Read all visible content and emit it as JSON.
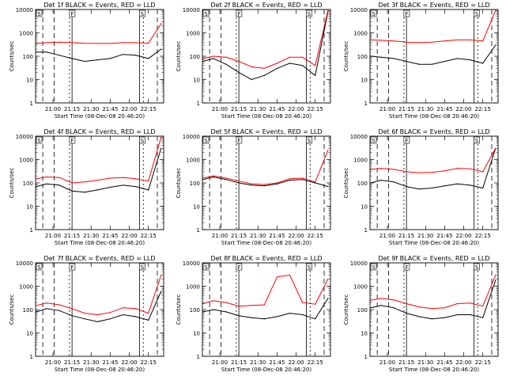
{
  "colors": {
    "events": "#000000",
    "lld": "#ff0000",
    "frame": "#000000",
    "background": "#ffffff"
  },
  "y_axis_label": "Counts/sec",
  "x_axis_label": "Start Time (08-Dec-08 20:46:20)",
  "x_tick_labels": [
    "21:00",
    "21:15",
    "21:30",
    "21:45",
    "22:00",
    "22:15"
  ],
  "y_tick_labels": [
    "1",
    "10",
    "100",
    "1000",
    "10000"
  ],
  "markers": {
    "start": "S",
    "flare": "F",
    "end": "S"
  },
  "panels": [
    {
      "title": "Det 1f BLACK = Events, RED = LLD"
    },
    {
      "title": "Det 2f BLACK = Events, RED = LLD"
    },
    {
      "title": "Det 3f BLACK = Events, RED = LLD"
    },
    {
      "title": "Det 4f BLACK = Events, RED = LLD"
    },
    {
      "title": "Det 5f BLACK = Events, RED = LLD"
    },
    {
      "title": "Det 6f BLACK = Events, RED = LLD"
    },
    {
      "title": "Det 7f BLACK = Events, RED = LLD"
    },
    {
      "title": "Det 8f BLACK = Events, RED = LLD"
    },
    {
      "title": "Det 9f BLACK = Events, RED = LLD"
    }
  ],
  "chart_data": [
    {
      "type": "line",
      "title": "Det 1f BLACK = Events, RED = LLD",
      "xlabel": "",
      "ylabel": "Counts/sec",
      "y_scale": "log",
      "ylim": [
        1,
        10000
      ],
      "xlim": [
        "20:46:20",
        "22:27:00"
      ],
      "x": [
        "20:47",
        "20:55",
        "21:05",
        "21:15",
        "21:25",
        "21:35",
        "21:45",
        "21:55",
        "22:05",
        "22:15",
        "22:25"
      ],
      "series": [
        {
          "values": [
            150,
            150,
            110,
            80,
            60,
            70,
            80,
            120,
            110,
            80,
            200
          ]
        },
        {
          "values": [
            350,
            380,
            400,
            380,
            360,
            350,
            350,
            380,
            380,
            360,
            2500
          ]
        }
      ],
      "vlines": [
        "20:52",
        "21:01",
        "21:13",
        "21:15",
        "22:08",
        "22:11"
      ]
    },
    {
      "type": "line",
      "title": "Det 2f BLACK = Events, RED = LLD",
      "xlabel": "",
      "ylabel": "Counts/sec",
      "y_scale": "log",
      "ylim": [
        1,
        10000
      ],
      "xlim": [
        "20:46:20",
        "22:27:00"
      ],
      "x": [
        "20:47",
        "20:55",
        "21:05",
        "21:15",
        "21:25",
        "21:35",
        "21:45",
        "21:55",
        "22:05",
        "22:15",
        "22:25"
      ],
      "series": [
        {
          "values": [
            60,
            80,
            45,
            20,
            10,
            15,
            30,
            50,
            40,
            15,
            8000
          ]
        },
        {
          "values": [
            80,
            100,
            90,
            60,
            35,
            30,
            50,
            90,
            90,
            40,
            9000
          ]
        }
      ],
      "vlines": [
        "20:52",
        "21:01",
        "21:13",
        "21:15",
        "22:08",
        "22:11"
      ]
    },
    {
      "type": "line",
      "title": "Det 3f BLACK = Events, RED = LLD",
      "xlabel": "",
      "ylabel": "Counts/sec",
      "y_scale": "log",
      "ylim": [
        1,
        10000
      ],
      "xlim": [
        "20:46:20",
        "22:27:00"
      ],
      "x": [
        "20:47",
        "20:55",
        "21:05",
        "21:15",
        "21:25",
        "21:35",
        "21:45",
        "21:55",
        "22:05",
        "22:15",
        "22:25"
      ],
      "series": [
        {
          "values": [
            100,
            90,
            80,
            60,
            45,
            45,
            60,
            80,
            70,
            50,
            300
          ]
        },
        {
          "values": [
            500,
            480,
            450,
            400,
            380,
            400,
            450,
            500,
            500,
            450,
            9000
          ]
        }
      ],
      "vlines": [
        "20:52",
        "21:01",
        "21:13",
        "21:15",
        "22:08",
        "22:11"
      ]
    },
    {
      "type": "line",
      "title": "Det 4f BLACK = Events, RED = LLD",
      "xlabel": "",
      "ylabel": "Counts/sec",
      "y_scale": "log",
      "ylim": [
        1,
        10000
      ],
      "xlim": [
        "20:46:20",
        "22:27:00"
      ],
      "x": [
        "20:47",
        "20:55",
        "21:05",
        "21:15",
        "21:25",
        "21:35",
        "21:45",
        "21:55",
        "22:05",
        "22:15",
        "22:25"
      ],
      "series": [
        {
          "values": [
            70,
            90,
            80,
            45,
            40,
            50,
            65,
            80,
            70,
            50,
            3000
          ]
        },
        {
          "values": [
            150,
            180,
            170,
            100,
            110,
            130,
            160,
            170,
            150,
            120,
            9000
          ]
        }
      ],
      "vlines": [
        "20:52",
        "21:01",
        "21:13",
        "21:15",
        "22:08",
        "22:11"
      ]
    },
    {
      "type": "line",
      "title": "Det 5f BLACK = Events, RED = LLD",
      "xlabel": "",
      "ylabel": "Counts/sec",
      "y_scale": "log",
      "ylim": [
        1,
        10000
      ],
      "xlim": [
        "20:46:20",
        "22:27:00"
      ],
      "x": [
        "20:47",
        "20:55",
        "21:05",
        "21:15",
        "21:25",
        "21:35",
        "21:45",
        "21:55",
        "22:05",
        "22:15",
        "22:25"
      ],
      "series": [
        {
          "values": [
            140,
            180,
            140,
            100,
            80,
            75,
            90,
            130,
            140,
            100,
            70
          ]
        },
        {
          "values": [
            160,
            200,
            160,
            120,
            90,
            85,
            100,
            150,
            160,
            110,
            2500
          ]
        }
      ],
      "vlines": [
        "20:52",
        "21:01",
        "21:13",
        "21:15",
        "22:08",
        "22:11"
      ]
    },
    {
      "type": "line",
      "title": "Det 6f BLACK = Events, RED = LLD",
      "xlabel": "",
      "ylabel": "Counts/sec",
      "y_scale": "log",
      "ylim": [
        1,
        10000
      ],
      "xlim": [
        "20:46:20",
        "22:27:00"
      ],
      "x": [
        "20:47",
        "20:55",
        "21:05",
        "21:15",
        "21:25",
        "21:35",
        "21:45",
        "21:55",
        "22:05",
        "22:15",
        "22:25"
      ],
      "series": [
        {
          "values": [
            100,
            130,
            110,
            70,
            55,
            60,
            75,
            90,
            80,
            60,
            3000
          ]
        },
        {
          "values": [
            380,
            420,
            380,
            300,
            270,
            280,
            330,
            420,
            400,
            300,
            3000
          ]
        }
      ],
      "vlines": [
        "20:52",
        "21:01",
        "21:13",
        "21:15",
        "22:08",
        "22:11"
      ]
    },
    {
      "type": "line",
      "title": "Det 7f BLACK = Events, RED = LLD",
      "xlabel": "",
      "ylabel": "Counts/sec",
      "y_scale": "log",
      "ylim": [
        1,
        10000
      ],
      "xlim": [
        "20:46:20",
        "22:27:00"
      ],
      "x": [
        "20:47",
        "20:55",
        "21:05",
        "21:15",
        "21:25",
        "21:35",
        "21:45",
        "21:55",
        "22:05",
        "22:15",
        "22:25"
      ],
      "series": [
        {
          "values": [
            80,
            110,
            90,
            55,
            40,
            30,
            40,
            60,
            50,
            35,
            600
          ]
        },
        {
          "values": [
            150,
            190,
            160,
            110,
            70,
            60,
            75,
            120,
            110,
            70,
            3000
          ]
        }
      ],
      "vlines": [
        "20:52",
        "21:01",
        "21:13",
        "21:15",
        "22:08",
        "22:11"
      ]
    },
    {
      "type": "line",
      "title": "Det 8f BLACK = Events, RED = LLD",
      "xlabel": "",
      "ylabel": "Counts/sec",
      "y_scale": "log",
      "ylim": [
        1,
        10000
      ],
      "xlim": [
        "20:46:20",
        "22:27:00"
      ],
      "x": [
        "20:47",
        "20:55",
        "21:05",
        "21:15",
        "21:25",
        "21:35",
        "21:45",
        "21:55",
        "22:05",
        "22:15",
        "22:25"
      ],
      "series": [
        {
          "values": [
            80,
            100,
            80,
            55,
            45,
            40,
            50,
            70,
            60,
            40,
            300
          ]
        },
        {
          "values": [
            180,
            240,
            200,
            140,
            150,
            160,
            2500,
            3000,
            200,
            170,
            2000
          ]
        }
      ],
      "vlines": [
        "20:52",
        "21:01",
        "21:13",
        "21:15",
        "22:08",
        "22:11"
      ]
    },
    {
      "type": "line",
      "title": "Det 9f BLACK = Events, RED = LLD",
      "xlabel": "",
      "ylabel": "Counts/sec",
      "y_scale": "log",
      "ylim": [
        1,
        10000
      ],
      "xlim": [
        "20:46:20",
        "22:27:00"
      ],
      "x": [
        "20:47",
        "20:55",
        "21:05",
        "21:15",
        "21:25",
        "21:35",
        "21:45",
        "21:55",
        "22:05",
        "22:15",
        "22:25"
      ],
      "series": [
        {
          "values": [
            120,
            150,
            120,
            70,
            50,
            40,
            45,
            60,
            60,
            45,
            1800
          ]
        },
        {
          "values": [
            250,
            300,
            260,
            180,
            130,
            110,
            120,
            180,
            190,
            140,
            3000
          ]
        }
      ],
      "vlines": [
        "20:52",
        "21:01",
        "21:13",
        "21:15",
        "22:08",
        "22:11"
      ]
    }
  ]
}
